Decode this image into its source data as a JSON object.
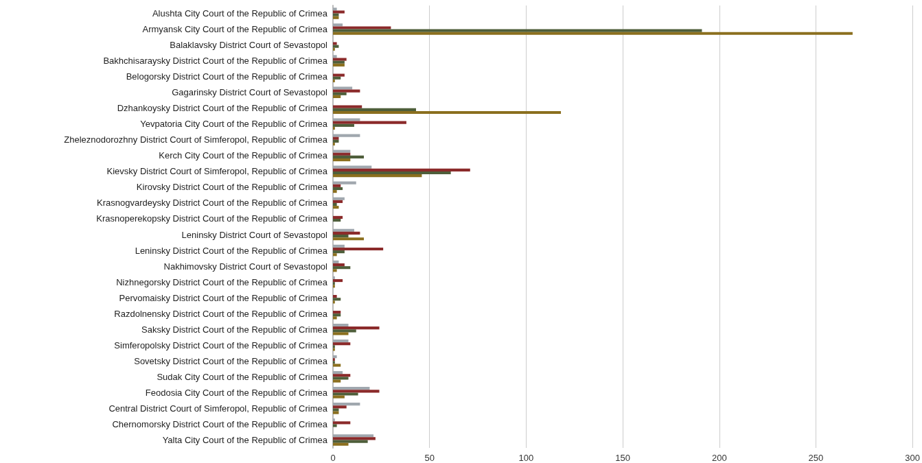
{
  "chart_data": {
    "type": "bar",
    "orientation": "horizontal",
    "categories": [
      "Alushta City Court of the Republic of Crimea",
      "Armyansk City Court of the Republic of Crimea",
      "Balaklavsky District Court of Sevastopol",
      "Bakhchisaraysky District Court of the Republic of Crimea",
      "Belogorsky District Court of the Republic of Crimea",
      "Gagarinsky District Court of Sevastopol",
      "Dzhankoysky District Court of the Republic of Crimea",
      "Yevpatoria City Court of the Republic of Crimea",
      "Zheleznodorozhny District Court of Simferopol, Republic of Crimea",
      "Kerch City Court of the Republic of Crimea",
      "Kievsky District Court of Simferopol, Republic of Crimea",
      "Kirovsky District Court of the Republic of Crimea",
      "Krasnogvardeysky District Court of the Republic of Crimea",
      "Krasnoperekopsky District Court of the Republic of Crimea",
      "Leninsky District Court of Sevastopol",
      "Leninsky District Court of the Republic of Crimea",
      "Nakhimovsky District Court of Sevastopol",
      "Nizhnegorsky District Court of the Republic of Crimea",
      "Pervomaisky District Court of the Republic of Crimea",
      "Razdolnensky District Court of the Republic of Crimea",
      "Saksky District Court of the Republic of Crimea",
      "Simferopolsky District Court of the Republic of Crimea",
      "Sovetsky District Court of the Republic of Crimea",
      "Sudak City Court of the Republic of Crimea",
      "Feodosia City Court of the Republic of Crimea",
      "Central District Court of Simferopol, Republic of Crimea",
      "Chernomorsky District Court of the Republic of Crimea",
      "Yalta City Court of the Republic of Crimea"
    ],
    "series": [
      {
        "color": "#a0a7ae",
        "values": [
          2,
          5,
          0,
          2,
          0,
          10,
          0,
          14,
          14,
          9,
          20,
          12,
          6,
          0,
          11,
          6,
          3,
          1,
          0,
          0,
          8,
          8,
          2,
          5,
          19,
          14,
          1,
          21
        ]
      },
      {
        "color": "#8b2a2a",
        "values": [
          6,
          30,
          2,
          7,
          6,
          14,
          15,
          38,
          3,
          9,
          71,
          4,
          5,
          5,
          14,
          26,
          6,
          5,
          2,
          4,
          24,
          9,
          1,
          9,
          24,
          7,
          9,
          22
        ]
      },
      {
        "color": "#4e5e3a",
        "values": [
          3,
          191,
          3,
          6,
          4,
          7,
          43,
          11,
          3,
          16,
          61,
          5,
          2,
          4,
          8,
          6,
          9,
          1,
          4,
          4,
          12,
          1,
          1,
          8,
          13,
          3,
          2,
          18
        ]
      },
      {
        "color": "#8b6f1e",
        "values": [
          3,
          269,
          1,
          6,
          1,
          4,
          118,
          1,
          1,
          9,
          46,
          2,
          3,
          0,
          16,
          2,
          2,
          1,
          1,
          2,
          8,
          1,
          4,
          4,
          6,
          3,
          0,
          8
        ]
      }
    ],
    "xlim": [
      0,
      300
    ],
    "xticks": [
      0,
      50,
      100,
      150,
      200,
      250,
      300
    ],
    "grid": "x"
  }
}
